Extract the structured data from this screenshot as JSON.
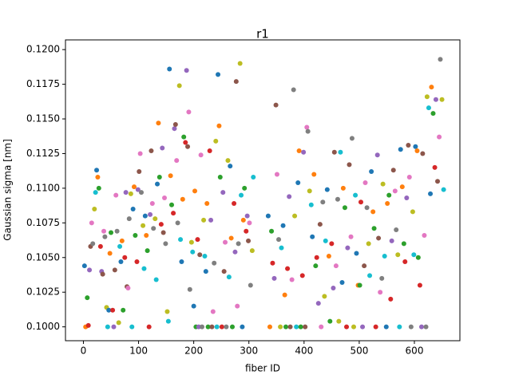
{
  "chart_data": {
    "type": "scatter",
    "title": "r1",
    "xlabel": "fiber ID",
    "ylabel": "Gaussian sigma [nm]",
    "xlim": [
      -32.5,
      682.5
    ],
    "xticks": [
      0,
      100,
      200,
      300,
      400,
      500,
      600
    ],
    "ylim": [
      0.099,
      0.1207
    ],
    "yticks": [
      {
        "value": 0.1,
        "label": "0.1000"
      },
      {
        "value": 0.1025,
        "label": "0.1025"
      },
      {
        "value": 0.105,
        "label": "0.1050"
      },
      {
        "value": 0.1075,
        "label": "0.1075"
      },
      {
        "value": 0.11,
        "label": "0.1100"
      },
      {
        "value": 0.1125,
        "label": "0.1125"
      },
      {
        "value": 0.115,
        "label": "0.1150"
      },
      {
        "value": 0.1175,
        "label": "0.1175"
      },
      {
        "value": 0.12,
        "label": "0.1200"
      }
    ],
    "grid": false,
    "color_cycle": [
      "#1f77b4",
      "#ff7f0e",
      "#2ca02c",
      "#d62728",
      "#9467bd",
      "#8c564b",
      "#e377c2",
      "#7f7f7f",
      "#bcbd22",
      "#17becf"
    ],
    "x": [
      2,
      4,
      7,
      9,
      11,
      13,
      15,
      17,
      20,
      22,
      24,
      26,
      28,
      31,
      33,
      35,
      37,
      39,
      42,
      44,
      46,
      48,
      50,
      53,
      55,
      57,
      59,
      61,
      64,
      66,
      68,
      70,
      72,
      75,
      77,
      79,
      81,
      83,
      86,
      88,
      90,
      92,
      94,
      97,
      99,
      101,
      103,
      105,
      108,
      110,
      112,
      114,
      116,
      119,
      121,
      123,
      125,
      127,
      130,
      132,
      134,
      136,
      138,
      141,
      143,
      145,
      147,
      149,
      152,
      154,
      156,
      158,
      160,
      163,
      165,
      167,
      169,
      171,
      174,
      176,
      178,
      180,
      182,
      185,
      187,
      189,
      191,
      193,
      196,
      198,
      200,
      202,
      204,
      207,
      209,
      211,
      213,
      215,
      218,
      220,
      222,
      224,
      226,
      229,
      231,
      233,
      235,
      237,
      240,
      242,
      244,
      246,
      248,
      251,
      253,
      255,
      257,
      259,
      262,
      264,
      266,
      268,
      270,
      273,
      275,
      277,
      279,
      281,
      284,
      286,
      288,
      290,
      292,
      295,
      297,
      299,
      301,
      303,
      306,
      308,
      335,
      338,
      341,
      343,
      346,
      349,
      351,
      354,
      357,
      359,
      362,
      365,
      367,
      370,
      373,
      375,
      378,
      381,
      383,
      386,
      389,
      391,
      394,
      397,
      399,
      402,
      405,
      407,
      410,
      413,
      415,
      418,
      421,
      423,
      426,
      429,
      431,
      434,
      437,
      439,
      442,
      445,
      447,
      450,
      453,
      455,
      458,
      461,
      463,
      466,
      469,
      471,
      474,
      477,
      479,
      482,
      485,
      487,
      490,
      493,
      495,
      498,
      501,
      503,
      506,
      509,
      511,
      514,
      517,
      519,
      522,
      525,
      527,
      530,
      533,
      535,
      538,
      541,
      543,
      546,
      549,
      551,
      554,
      557,
      559,
      562,
      565,
      567,
      570,
      573,
      575,
      578,
      581,
      583,
      586,
      589,
      591,
      594,
      597,
      599,
      602,
      605,
      607,
      610,
      613,
      615,
      618,
      621,
      623,
      626,
      629,
      631,
      634,
      637,
      639,
      642,
      645,
      647,
      650,
      653
    ],
    "values": [
      0.1044,
      0.1,
      0.1021,
      0.1001,
      0.1041,
      0.1058,
      0.1075,
      0.106,
      0.1085,
      0.1097,
      0.1113,
      0.1108,
      0.11,
      0.1058,
      0.104,
      0.1038,
      0.1069,
      0.1065,
      0.1014,
      0.1,
      0.1012,
      0.1053,
      0.1068,
      0.1012,
      0.1,
      0.1041,
      0.1095,
      0.1069,
      0.1003,
      0.1058,
      0.1047,
      0.1062,
      0.1012,
      0.105,
      0.1097,
      0.1029,
      0.1028,
      0.1078,
      0.1096,
      0.1,
      0.1085,
      0.1101,
      0.1066,
      0.1047,
      0.1099,
      0.1112,
      0.1125,
      0.1097,
      0.1073,
      0.1042,
      0.108,
      0.1066,
      0.1055,
      0.1,
      0.1081,
      0.1127,
      0.1089,
      0.1071,
      0.1078,
      0.1034,
      0.1103,
      0.1147,
      0.1108,
      0.1074,
      0.1129,
      0.1068,
      0.1093,
      0.106,
      0.1011,
      0.1004,
      0.1186,
      0.1109,
      0.1088,
      0.1082,
      0.1143,
      0.1146,
      0.112,
      0.1075,
      0.1174,
      0.1063,
      0.1047,
      0.1092,
      0.1137,
      0.1133,
      0.1185,
      0.113,
      0.1155,
      0.1027,
      0.1061,
      0.1054,
      0.1015,
      0.1098,
      0.1,
      0.1063,
      0.1,
      0.1052,
      0.1124,
      0.1,
      0.1077,
      0.1051,
      0.104,
      0.1089,
      0.1,
      0.1127,
      0.1077,
      0.1,
      0.1011,
      0.1046,
      0.1134,
      0.1,
      0.1182,
      0.1145,
      0.1108,
      0.1,
      0.1097,
      0.104,
      0.1061,
      0.1,
      0.112,
      0.1036,
      0.1116,
      0.1064,
      0.1,
      0.1089,
      0.1054,
      0.1177,
      0.1015,
      0.106,
      0.119,
      0.1095,
      0.1,
      0.1077,
      0.11,
      0.1069,
      0.108,
      0.1062,
      0.1075,
      0.103,
      0.1055,
      0.1108,
      0.108,
      0.1,
      0.1069,
      0.1046,
      0.1035,
      0.116,
      0.111,
      0.1063,
      0.1,
      0.1057,
      0.1073,
      0.1023,
      0.1,
      0.1042,
      0.1094,
      0.1,
      0.1034,
      0.1171,
      0.108,
      0.1,
      0.1104,
      0.1127,
      0.1,
      0.1037,
      0.1126,
      0.1,
      0.1144,
      0.1141,
      0.1098,
      0.1088,
      0.1065,
      0.111,
      0.1044,
      0.105,
      0.1017,
      0.1074,
      0.1,
      0.109,
      0.1022,
      0.1062,
      0.1099,
      0.1051,
      0.1004,
      0.106,
      0.1028,
      0.1126,
      0.1044,
      0.1092,
      0.1004,
      0.1126,
      0.1032,
      0.11,
      0.1086,
      0.1,
      0.1057,
      0.1117,
      0.1065,
      0.1136,
      0.1,
      0.1095,
      0.1053,
      0.103,
      0.103,
      0.109,
      0.1,
      0.1044,
      0.1104,
      0.1086,
      0.106,
      0.1037,
      0.1112,
      0.1083,
      0.1071,
      0.1,
      0.1124,
      0.1064,
      0.1025,
      0.1035,
      0.1103,
      0.1051,
      0.1,
      0.1089,
      0.1095,
      0.102,
      0.1062,
      0.1113,
      0.1098,
      0.107,
      0.1052,
      0.1,
      0.1128,
      0.1101,
      0.106,
      0.1047,
      0.1093,
      0.1131,
      0.1108,
      0.1,
      0.1083,
      0.1052,
      0.113,
      0.1127,
      0.105,
      0.103,
      0.1,
      0.1125,
      0.1066,
      0.1,
      0.1166,
      0.1158,
      0.1096,
      0.1173,
      0.1154,
      0.1115,
      0.1164,
      0.1105,
      0.1137,
      0.1193,
      0.1164,
      0.1099
    ]
  }
}
